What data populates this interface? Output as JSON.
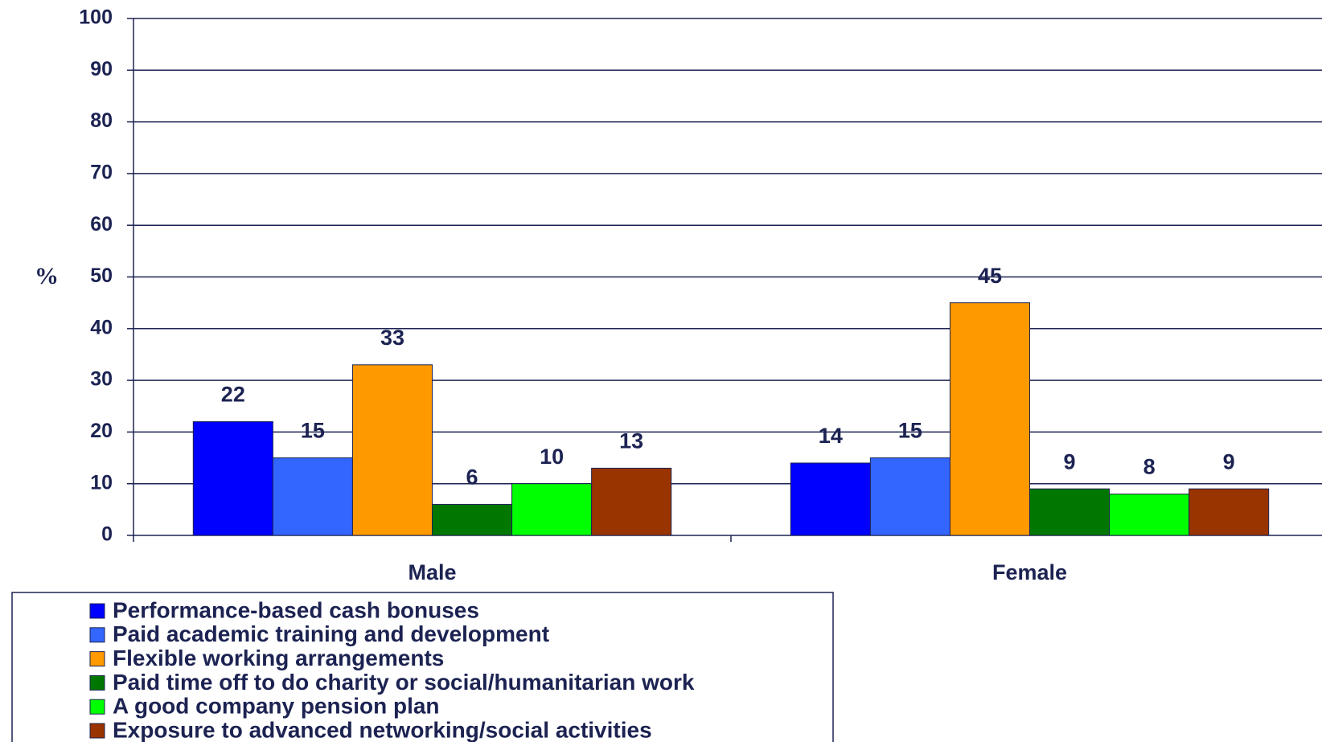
{
  "chart_data": {
    "type": "bar",
    "y_label": "%",
    "categories": [
      "Male",
      "Female"
    ],
    "series": [
      {
        "name": "Performance-based cash bonuses",
        "color": "#0000ff",
        "values": [
          22,
          14
        ]
      },
      {
        "name": "Paid academic training and development",
        "color": "#3366ff",
        "values": [
          15,
          15
        ]
      },
      {
        "name": "Flexible working arrangements",
        "color": "#ff9900",
        "values": [
          33,
          45
        ]
      },
      {
        "name": "Paid time off to do charity or social/humanitarian work",
        "color": "#007700",
        "values": [
          6,
          9
        ]
      },
      {
        "name": "A good company pension plan",
        "color": "#00ff00",
        "values": [
          10,
          8
        ]
      },
      {
        "name": "Exposure to advanced networking/social activities",
        "color": "#993300",
        "values": [
          13,
          9
        ]
      }
    ],
    "ylim": [
      0,
      100
    ],
    "yticks": [
      0,
      10,
      20,
      30,
      40,
      50,
      60,
      70,
      80,
      90,
      100
    ],
    "grid": true,
    "legend": "bottom-left"
  }
}
